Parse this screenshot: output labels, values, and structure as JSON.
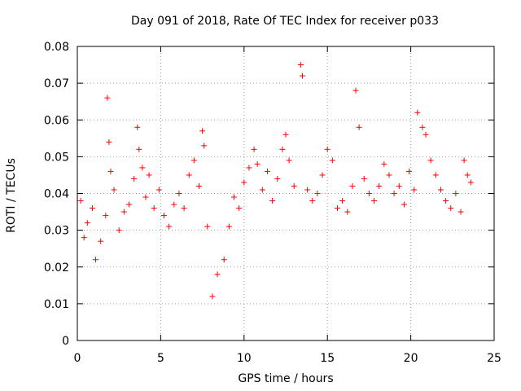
{
  "chart_data": {
    "type": "scatter",
    "title": "Day 091 of 2018, Rate Of TEC Index for receiver p033",
    "xlabel": "GPS time / hours",
    "ylabel": "ROTI / TECUs",
    "xlim": [
      0,
      25
    ],
    "ylim": [
      0,
      0.08
    ],
    "xticks": [
      0,
      5,
      10,
      15,
      20,
      25
    ],
    "yticks": [
      0,
      0.01,
      0.02,
      0.03,
      0.04,
      0.05,
      0.06,
      0.07,
      0.08
    ],
    "ytick_labels": [
      "0",
      "0.01",
      "0.02",
      "0.03",
      "0.04",
      "0.05",
      "0.06",
      "0.07",
      "0.08"
    ],
    "grid": true,
    "marker": "+",
    "color": "#ff0000",
    "series": [
      {
        "name": "ROTI",
        "x": [
          0.2,
          0.4,
          0.6,
          0.9,
          1.1,
          1.4,
          1.7,
          1.8,
          1.9,
          2.0,
          2.2,
          2.5,
          2.8,
          3.1,
          3.4,
          3.6,
          3.7,
          3.9,
          4.1,
          4.3,
          4.6,
          4.9,
          5.2,
          5.5,
          5.8,
          6.1,
          6.4,
          6.7,
          7.0,
          7.3,
          7.5,
          7.6,
          7.8,
          8.1,
          8.4,
          8.8,
          9.1,
          9.4,
          9.7,
          10.0,
          10.3,
          10.6,
          10.8,
          11.1,
          11.4,
          11.7,
          12.0,
          12.3,
          12.5,
          12.7,
          13.0,
          13.4,
          13.5,
          13.8,
          14.1,
          14.4,
          14.7,
          15.0,
          15.3,
          15.6,
          15.9,
          16.2,
          16.5,
          16.7,
          16.9,
          17.2,
          17.5,
          17.8,
          18.1,
          18.4,
          18.7,
          19.0,
          19.3,
          19.6,
          19.9,
          20.2,
          20.4,
          20.7,
          20.9,
          21.2,
          21.5,
          21.8,
          22.1,
          22.4,
          22.7,
          23.0,
          23.2,
          23.4,
          23.6
        ],
        "y": [
          0.038,
          0.028,
          0.032,
          0.036,
          0.022,
          0.027,
          0.034,
          0.066,
          0.054,
          0.046,
          0.041,
          0.03,
          0.035,
          0.037,
          0.044,
          0.058,
          0.052,
          0.047,
          0.039,
          0.045,
          0.036,
          0.041,
          0.034,
          0.031,
          0.037,
          0.04,
          0.036,
          0.045,
          0.049,
          0.042,
          0.057,
          0.053,
          0.031,
          0.012,
          0.018,
          0.022,
          0.031,
          0.039,
          0.036,
          0.043,
          0.047,
          0.052,
          0.048,
          0.041,
          0.046,
          0.038,
          0.044,
          0.052,
          0.056,
          0.049,
          0.042,
          0.075,
          0.072,
          0.041,
          0.038,
          0.04,
          0.045,
          0.052,
          0.049,
          0.036,
          0.038,
          0.035,
          0.042,
          0.068,
          0.058,
          0.044,
          0.04,
          0.038,
          0.042,
          0.048,
          0.045,
          0.04,
          0.042,
          0.037,
          0.046,
          0.041,
          0.062,
          0.058,
          0.056,
          0.049,
          0.045,
          0.041,
          0.038,
          0.036,
          0.04,
          0.035,
          0.049,
          0.045,
          0.043
        ]
      }
    ]
  }
}
